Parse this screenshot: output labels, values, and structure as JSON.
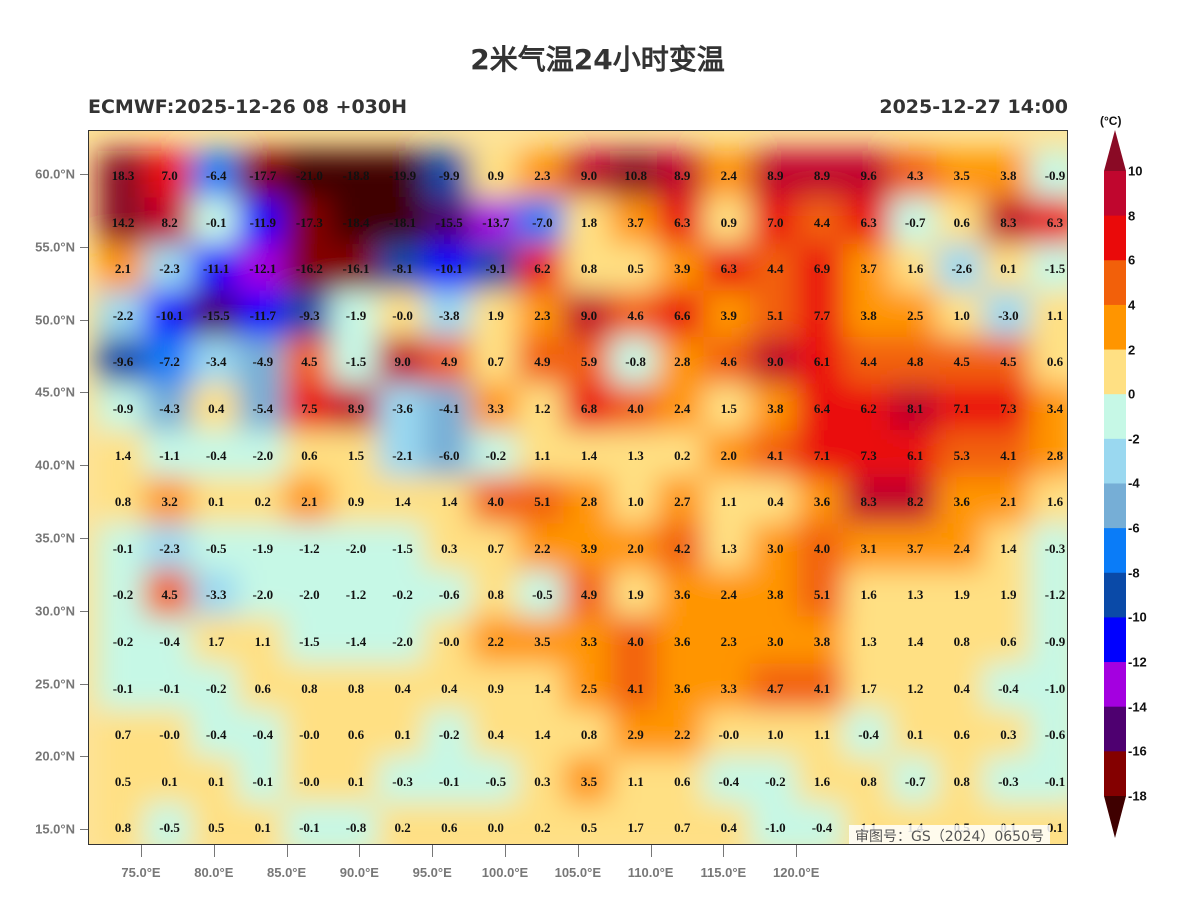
{
  "header": {
    "title": "2米气温24小时变温",
    "model_run": "ECMWF:2025-12-26 08 +030H",
    "valid_time": "2025-12-27 14:00"
  },
  "axes": {
    "lat_labels": [
      "60.0°N",
      "55.0°N",
      "50.0°N",
      "45.0°N",
      "40.0°N",
      "35.0°N",
      "30.0°N",
      "25.0°N",
      "20.0°N",
      "15.0°N"
    ],
    "lon_labels": [
      "75.0°E",
      "80.0°E",
      "85.0°E",
      "90.0°E",
      "95.0°E",
      "100.0°E",
      "105.0°E",
      "110.0°E",
      "115.0°E",
      "120.0°E"
    ]
  },
  "colorbar": {
    "unit": "(°C)",
    "levels": [
      10,
      8,
      6,
      4,
      2,
      0,
      -2,
      -4,
      -6,
      -8,
      -10,
      -12,
      -14,
      -16,
      -18
    ],
    "over_color": "#8a0a25",
    "colors": [
      "#c0062e",
      "#ea0a0a",
      "#f2600a",
      "#ff9500",
      "#ffe083",
      "#c6f8e6",
      "#9ad8f0",
      "#76aed6",
      "#0a7cf8",
      "#0a4aa8",
      "#0000ff",
      "#a400e0",
      "#4e0070",
      "#840000"
    ],
    "under_color": "#3f0000"
  },
  "map": {
    "stamp": "审图号：GS（2024）0650号",
    "grid_values": [
      [
        "18.3",
        "7.0",
        "-6.4",
        "-17.7",
        "-21.0",
        "-18.8",
        "-19.9",
        "-9.9",
        "0.9",
        "2.3",
        "9.0",
        "10.8",
        "8.9",
        "2.4",
        "8.9",
        "8.9",
        "9.6",
        "4.3",
        "3.5",
        "3.8",
        "-0.9"
      ],
      [
        "14.2",
        "8.2",
        "-0.1",
        "-11.9",
        "-17.3",
        "-18.4",
        "-18.1",
        "-15.5",
        "-13.7",
        "-7.0",
        "1.8",
        "3.7",
        "6.3",
        "0.9",
        "7.0",
        "4.4",
        "6.3",
        "-0.7",
        "0.6",
        "8.3",
        "6.3"
      ],
      [
        "2.1",
        "-2.3",
        "-11.1",
        "-12.1",
        "-16.2",
        "-16.1",
        "-8.1",
        "-10.1",
        "-9.1",
        "6.2",
        "0.8",
        "0.5",
        "3.9",
        "6.3",
        "4.4",
        "6.9",
        "3.7",
        "1.6",
        "-2.6",
        "0.1",
        "-1.5"
      ],
      [
        "-2.2",
        "-10.1",
        "-15.5",
        "-11.7",
        "-9.3",
        "-1.9",
        "-0.0",
        "-3.8",
        "1.9",
        "2.3",
        "9.0",
        "4.6",
        "6.6",
        "3.9",
        "5.1",
        "7.7",
        "3.8",
        "2.5",
        "1.0",
        "-3.0",
        "1.1"
      ],
      [
        "-9.6",
        "-7.2",
        "-3.4",
        "-4.9",
        "4.5",
        "-1.5",
        "9.0",
        "4.9",
        "0.7",
        "4.9",
        "5.9",
        "-0.8",
        "2.8",
        "4.6",
        "9.0",
        "6.1",
        "4.4",
        "4.8",
        "4.5",
        "4.5",
        "0.6"
      ],
      [
        "-0.9",
        "-4.3",
        "0.4",
        "-5.4",
        "7.5",
        "8.9",
        "-3.6",
        "-4.1",
        "3.3",
        "1.2",
        "6.8",
        "4.0",
        "2.4",
        "1.5",
        "3.8",
        "6.4",
        "6.2",
        "8.1",
        "7.1",
        "7.3",
        "3.4"
      ],
      [
        "1.4",
        "-1.1",
        "-0.4",
        "-2.0",
        "0.6",
        "1.5",
        "-2.1",
        "-6.0",
        "-0.2",
        "1.1",
        "1.4",
        "1.3",
        "0.2",
        "2.0",
        "4.1",
        "7.1",
        "7.3",
        "6.1",
        "5.3",
        "4.1",
        "2.8"
      ],
      [
        "0.8",
        "3.2",
        "0.1",
        "0.2",
        "2.1",
        "0.9",
        "1.4",
        "1.4",
        "4.0",
        "5.1",
        "2.8",
        "1.0",
        "2.7",
        "1.1",
        "0.4",
        "3.6",
        "8.3",
        "8.2",
        "3.6",
        "2.1",
        "1.6"
      ],
      [
        "-0.1",
        "-2.3",
        "-0.5",
        "-1.9",
        "-1.2",
        "-2.0",
        "-1.5",
        "0.3",
        "0.7",
        "2.2",
        "3.9",
        "2.0",
        "4.2",
        "1.3",
        "3.0",
        "4.0",
        "3.1",
        "3.7",
        "2.4",
        "1.4",
        "-0.3"
      ],
      [
        "-0.2",
        "4.5",
        "-3.3",
        "-2.0",
        "-2.0",
        "-1.2",
        "-0.2",
        "-0.6",
        "0.8",
        "-0.5",
        "4.9",
        "1.9",
        "3.6",
        "2.4",
        "3.8",
        "5.1",
        "1.6",
        "1.3",
        "1.9",
        "1.9",
        "-1.2"
      ],
      [
        "-0.2",
        "-0.4",
        "1.7",
        "1.1",
        "-1.5",
        "-1.4",
        "-2.0",
        "-0.0",
        "2.2",
        "3.5",
        "3.3",
        "4.0",
        "3.6",
        "2.3",
        "3.0",
        "3.8",
        "1.3",
        "1.4",
        "0.8",
        "0.6",
        "-0.9"
      ],
      [
        "-0.1",
        "-0.1",
        "-0.2",
        "0.6",
        "0.8",
        "0.8",
        "0.4",
        "0.4",
        "0.9",
        "1.4",
        "2.5",
        "4.1",
        "3.6",
        "3.3",
        "4.7",
        "4.1",
        "1.7",
        "1.2",
        "0.4",
        "-0.4",
        "-1.0"
      ],
      [
        "0.7",
        "-0.0",
        "-0.4",
        "-0.4",
        "-0.0",
        "0.6",
        "0.1",
        "-0.2",
        "0.4",
        "1.4",
        "0.8",
        "2.9",
        "2.2",
        "-0.0",
        "1.0",
        "1.1",
        "-0.4",
        "0.1",
        "0.6",
        "0.3",
        "-0.6"
      ],
      [
        "0.5",
        "0.1",
        "0.1",
        "-0.1",
        "-0.0",
        "0.1",
        "-0.3",
        "-0.1",
        "-0.5",
        "0.3",
        "3.5",
        "1.1",
        "0.6",
        "-0.4",
        "-0.2",
        "1.6",
        "0.8",
        "-0.7",
        "0.8",
        "-0.3",
        "-0.1"
      ],
      [
        "0.8",
        "-0.5",
        "0.5",
        "0.1",
        "-0.1",
        "-0.8",
        "0.2",
        "0.6",
        "0.0",
        "0.2",
        "0.5",
        "1.7",
        "0.7",
        "0.4",
        "-1.0",
        "-0.4",
        "1.1",
        "1.4",
        "0.5",
        "0.1",
        "0.1"
      ]
    ]
  }
}
